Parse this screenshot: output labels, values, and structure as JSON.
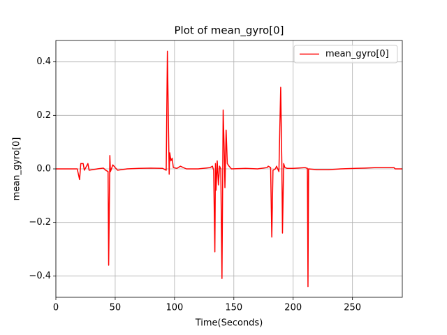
{
  "chart_data": {
    "type": "line",
    "title": "Plot of mean_gyro[0]",
    "x_label": "Time(Seconds)",
    "y_label": "mean_gyro[0]",
    "x": [
      0,
      18,
      20,
      21,
      23,
      24,
      27,
      28,
      35,
      40,
      42,
      44,
      44.5,
      45.5,
      46,
      48,
      50,
      52,
      60,
      70,
      80,
      90,
      93,
      94,
      95.5,
      96,
      97,
      98,
      99,
      102,
      105,
      110,
      120,
      130,
      132,
      133,
      134,
      134.5,
      135,
      136,
      137,
      138,
      139,
      140,
      141,
      142,
      142.5,
      143.5,
      144.5,
      146,
      148,
      160,
      170,
      178,
      179,
      181,
      182,
      183,
      185,
      186,
      188,
      189.5,
      190.5,
      191,
      192,
      193,
      195,
      200,
      210,
      212,
      212.5,
      213,
      220,
      230,
      240,
      260,
      270,
      285,
      286,
      292
    ],
    "series": [
      {
        "name": "mean_gyro[0]",
        "color": "#ff0000",
        "values": [
          0,
          0,
          -0.04,
          0.02,
          0.02,
          -0.005,
          0.02,
          -0.005,
          0,
          0.003,
          -0.005,
          -0.01,
          -0.36,
          0.05,
          -0.01,
          0.015,
          0.005,
          -0.005,
          0,
          0.002,
          0.003,
          0.002,
          -0.005,
          0.44,
          -0.02,
          0.06,
          0.03,
          0.04,
          0.005,
          0.002,
          0.01,
          0,
          0,
          0.005,
          0.01,
          -0.005,
          -0.31,
          0.02,
          -0.08,
          0.03,
          -0.06,
          0.01,
          0,
          -0.41,
          0.22,
          0.05,
          -0.07,
          0.145,
          0.02,
          0.01,
          0,
          0.002,
          0,
          0.005,
          0.01,
          0.005,
          -0.255,
          -0.005,
          0,
          0.01,
          -0.01,
          0.305,
          0.01,
          -0.24,
          0.02,
          0.005,
          0.002,
          0.002,
          0.005,
          0.002,
          -0.44,
          0,
          -0.003,
          -0.003,
          0,
          0.003,
          0.005,
          0.005,
          0,
          0
        ]
      }
    ],
    "xlim": [
      0,
      292
    ],
    "ylim": [
      -0.48,
      0.48
    ],
    "xticks": [
      0,
      50,
      100,
      150,
      200,
      250
    ],
    "yticks": [
      {
        "value": -0.4,
        "label": "−0.4"
      },
      {
        "value": -0.2,
        "label": "−0.2"
      },
      {
        "value": 0,
        "label": "0.0"
      },
      0.2,
      0.4
    ],
    "grid": true,
    "legend": "upper right"
  }
}
